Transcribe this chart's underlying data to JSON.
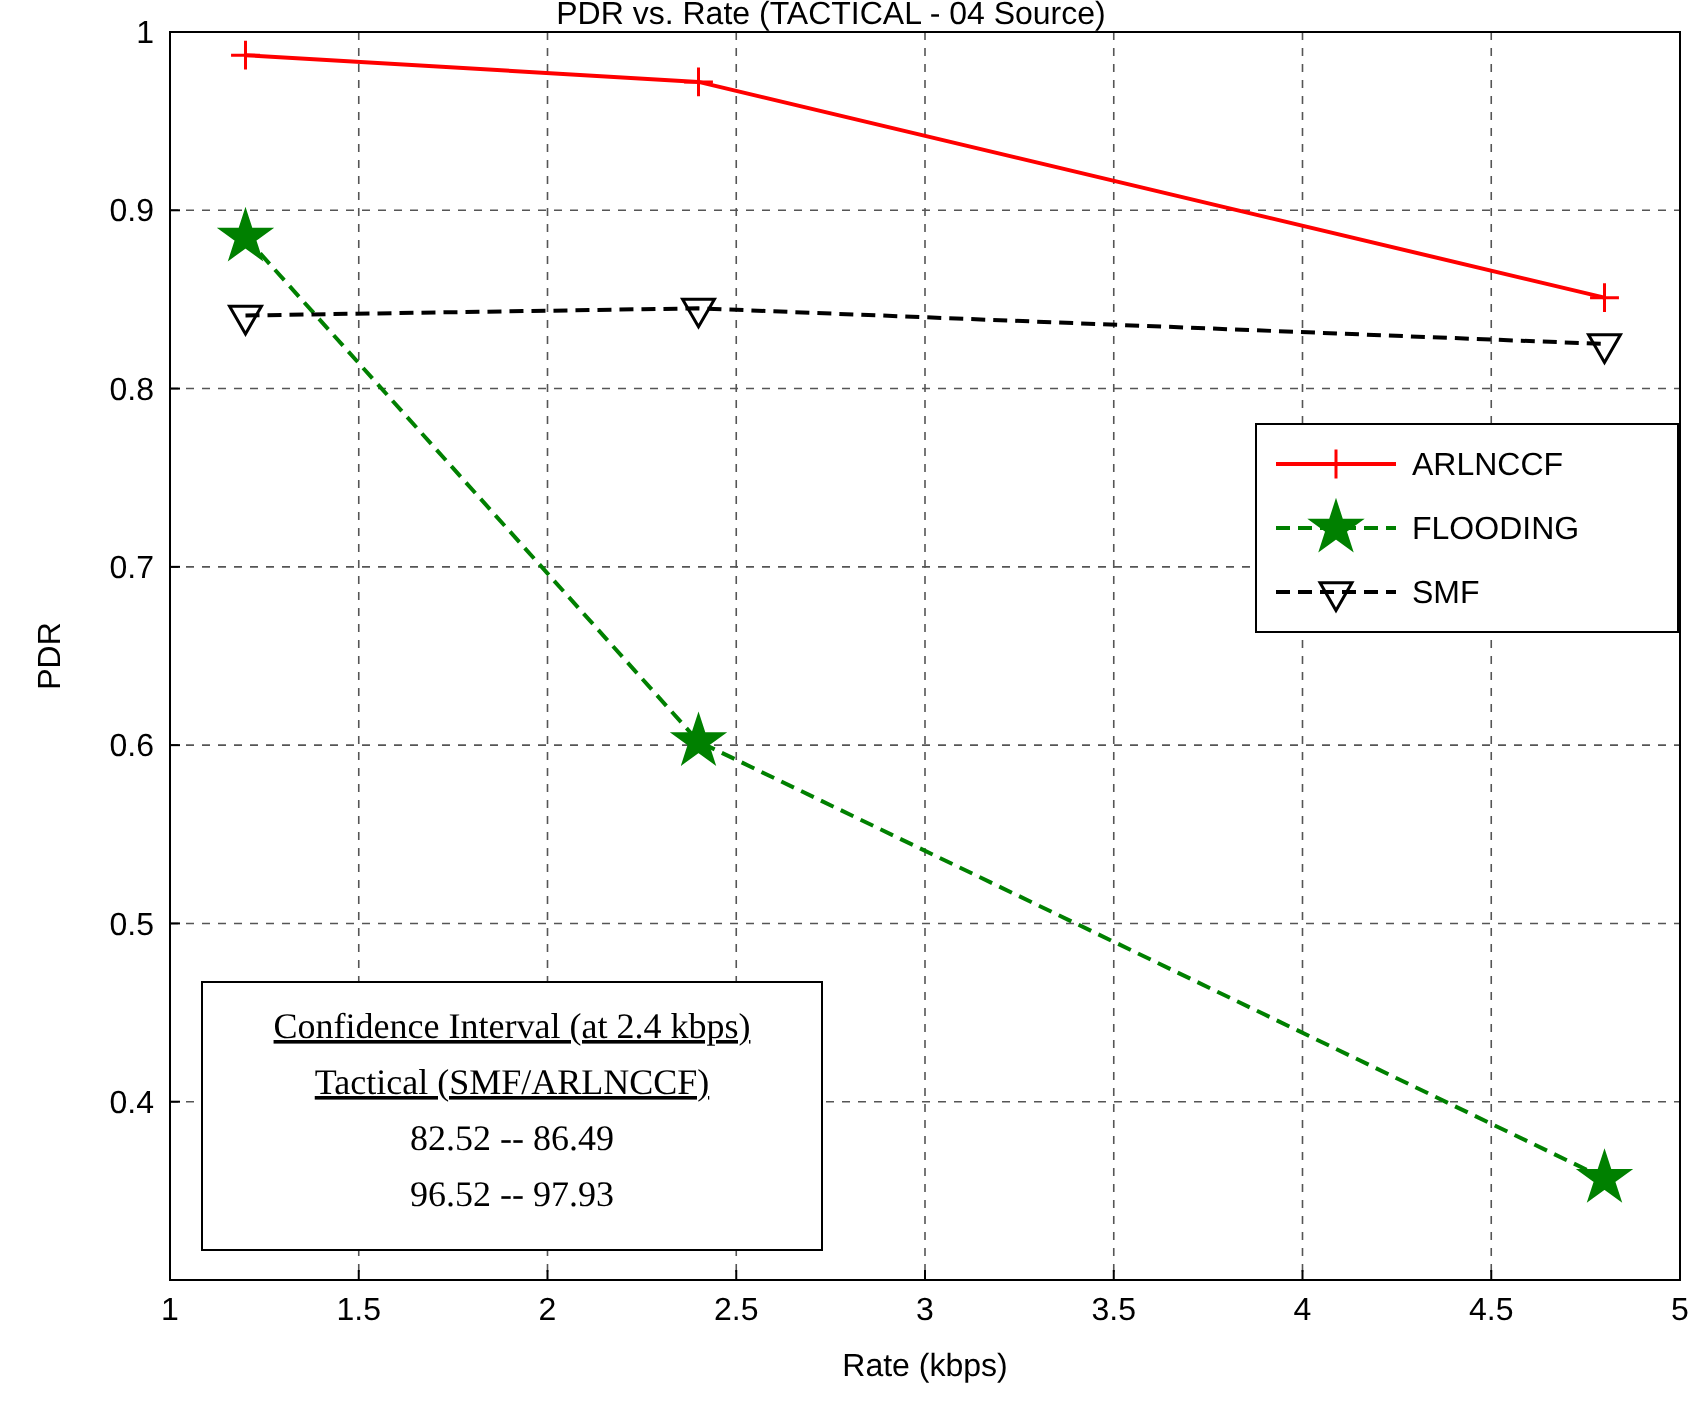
{
  "chart_data": {
    "type": "line",
    "title": "PDR vs. Rate (TACTICAL - 04 Source)",
    "xlabel": "Rate (kbps)",
    "ylabel": "PDR",
    "xlim": [
      1,
      5
    ],
    "xticks": [
      1,
      1.5,
      2,
      2.5,
      3,
      3.5,
      4,
      4.5,
      5
    ],
    "ylim": [
      0.3,
      1
    ],
    "yticks": [
      0.4,
      0.5,
      0.6,
      0.7,
      0.8,
      0.9,
      1
    ],
    "grid": true,
    "legend": "top right",
    "series": [
      {
        "name": "ARLNCCF",
        "color": "#ff0000",
        "x": [
          1.2,
          2.4,
          4.8
        ],
        "values": [
          0.987,
          0.972,
          0.851
        ],
        "marker": "cross",
        "line_style": "solid"
      },
      {
        "name": "FLOODING",
        "color": "#008000",
        "x": [
          1.2,
          2.4,
          4.8
        ],
        "values": [
          0.885,
          0.602,
          0.357
        ],
        "marker": "star",
        "line_style": "dashed"
      },
      {
        "name": "SMF",
        "color": "#000000",
        "x": [
          1.2,
          2.4,
          4.8
        ],
        "values": [
          0.841,
          0.845,
          0.825
        ],
        "marker": "triangle",
        "line_style": "dashed"
      }
    ],
    "annotations": [
      "Confidence Interval (at 2.4 kbps)",
      "Tactical (SMF/ARLNCCF)",
      "82.52 -- 86.49",
      "96.52 -- 97.93"
    ]
  }
}
